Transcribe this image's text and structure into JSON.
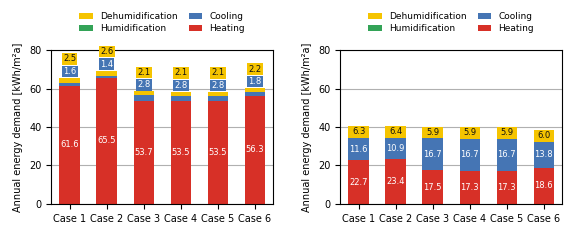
{
  "chart_data": [
    {
      "type": "bar",
      "stacked": true,
      "categories": [
        "Case 1",
        "Case 2",
        "Case 3",
        "Case 4",
        "Case 5",
        "Case 6"
      ],
      "series": [
        {
          "name": "Heating",
          "color": "#d73027",
          "values": [
            61.6,
            65.5,
            53.7,
            53.5,
            53.5,
            56.3
          ]
        },
        {
          "name": "Cooling",
          "color": "#4575b4",
          "values": [
            1.6,
            1.4,
            2.8,
            2.8,
            2.8,
            1.8
          ]
        },
        {
          "name": "Humidification",
          "color": "#33a357",
          "values": [
            0.0,
            0.0,
            0.0,
            0.0,
            0.0,
            0.0
          ]
        },
        {
          "name": "Dehumidification",
          "color": "#f5c400",
          "values": [
            2.5,
            2.6,
            2.1,
            2.1,
            2.1,
            2.2
          ]
        }
      ],
      "ylabel": "Annual energy demand [kWh/m²a]",
      "ylim": [
        0,
        80
      ],
      "yticks": [
        0,
        20,
        40,
        60,
        80
      ],
      "grid": true,
      "legend": "lower center",
      "data_labels": true
    },
    {
      "type": "bar",
      "stacked": true,
      "categories": [
        "Case 1",
        "Case 2",
        "Case 3",
        "Case 4",
        "Case 5",
        "Case 6"
      ],
      "series": [
        {
          "name": "Heating",
          "color": "#d73027",
          "values": [
            22.7,
            23.4,
            17.5,
            17.3,
            17.3,
            18.6
          ]
        },
        {
          "name": "Cooling",
          "color": "#4575b4",
          "values": [
            11.6,
            10.9,
            16.7,
            16.7,
            16.7,
            13.8
          ]
        },
        {
          "name": "Humidification",
          "color": "#33a357",
          "values": [
            0.0,
            0.0,
            0.0,
            0.0,
            0.0,
            0.0
          ]
        },
        {
          "name": "Dehumidification",
          "color": "#f5c400",
          "values": [
            6.3,
            6.4,
            5.9,
            5.9,
            5.9,
            6.0
          ]
        }
      ],
      "ylabel": "Annual energy demand [kWh/m²a]",
      "ylim": [
        0,
        80
      ],
      "yticks": [
        0,
        20,
        40,
        60,
        80
      ],
      "grid": true,
      "legend": "lower center",
      "data_labels": true
    }
  ]
}
